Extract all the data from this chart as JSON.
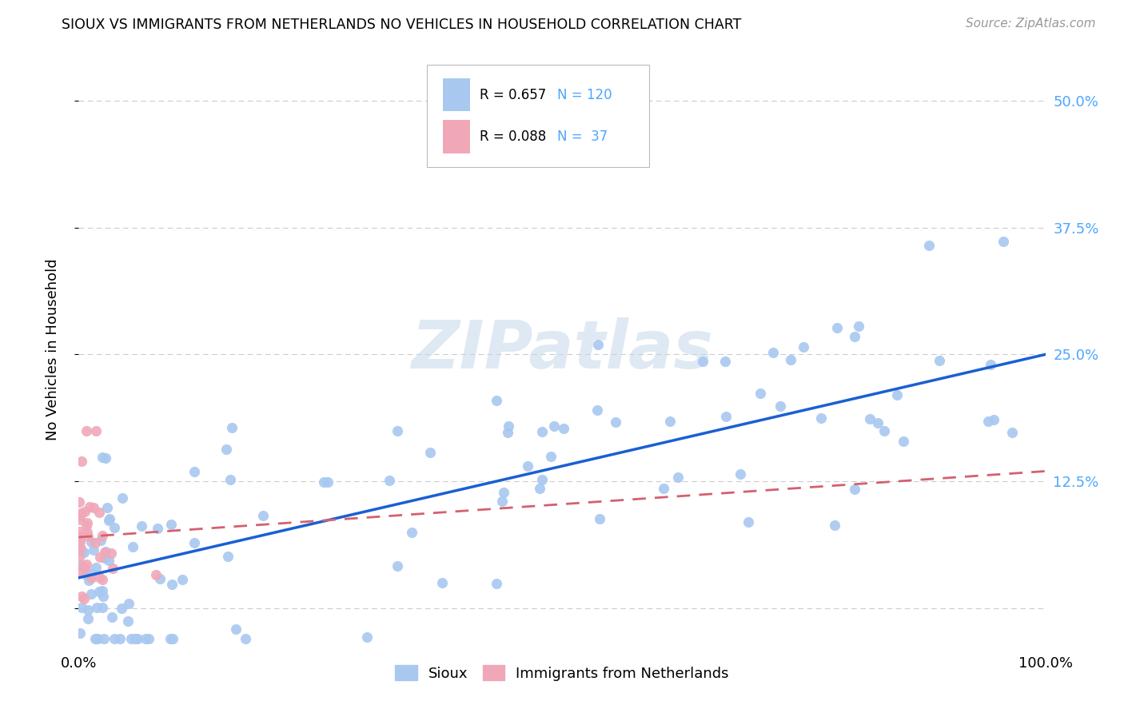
{
  "title": "SIOUX VS IMMIGRANTS FROM NETHERLANDS NO VEHICLES IN HOUSEHOLD CORRELATION CHART",
  "source": "Source: ZipAtlas.com",
  "ylabel": "No Vehicles in Household",
  "yticks": [
    0.0,
    0.125,
    0.25,
    0.375,
    0.5
  ],
  "ytick_labels_right": [
    "",
    "12.5%",
    "25.0%",
    "37.5%",
    "50.0%"
  ],
  "color_sioux": "#a8c8f0",
  "color_netherlands": "#f0a8b8",
  "color_line_sioux": "#1a5fd4",
  "color_line_netherlands": "#d46070",
  "watermark": "ZIPatlas",
  "xlim": [
    0.0,
    1.0
  ],
  "ylim": [
    -0.04,
    0.55
  ],
  "line_sioux_x0": 0.0,
  "line_sioux_y0": 0.03,
  "line_sioux_x1": 1.0,
  "line_sioux_y1": 0.25,
  "line_neth_x0": 0.0,
  "line_neth_y0": 0.07,
  "line_neth_x1": 1.0,
  "line_neth_y1": 0.135
}
